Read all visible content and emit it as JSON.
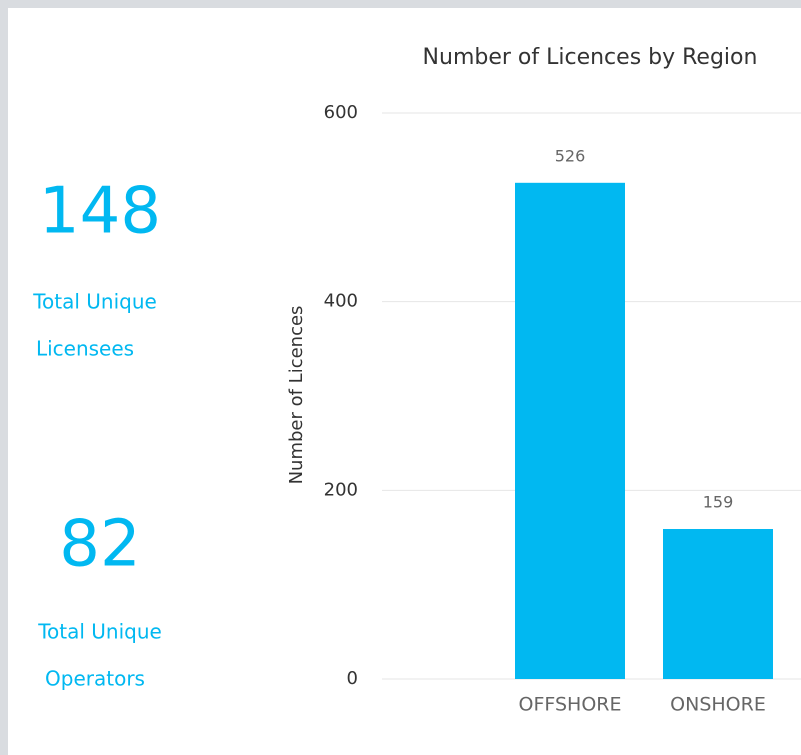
{
  "cards": [
    {
      "value": 148,
      "label_lines": [
        "Total Unique",
        "Licensees"
      ]
    },
    {
      "value": 82,
      "label_lines": [
        "Total Unique",
        "Operators"
      ]
    }
  ],
  "chart_data": {
    "type": "bar",
    "title": "Number of Licences by Region",
    "y_label": "Number of Licences",
    "categories": [
      "OFFSHORE",
      "ONSHORE"
    ],
    "values": [
      526,
      159
    ],
    "color": "#01b8f1",
    "ylim": [
      0,
      600
    ],
    "yticks": [
      0,
      200,
      400,
      600
    ],
    "grid": true
  }
}
